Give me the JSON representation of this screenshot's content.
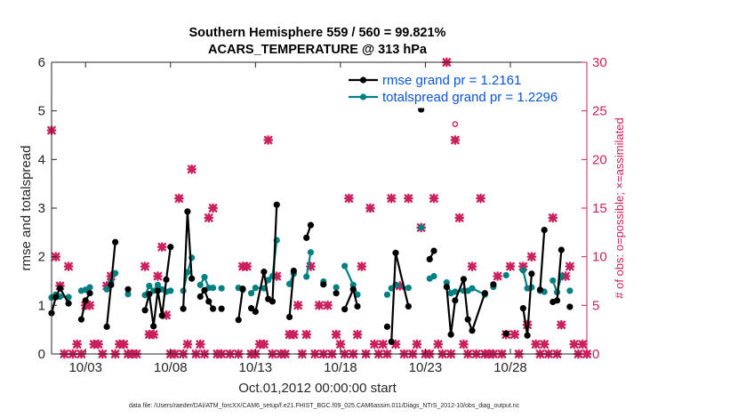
{
  "chart_data": {
    "type": "line",
    "title": [
      "Southern Hemisphere 559 / 560 = 99.821%",
      "ACARS_TEMPERATURE @ 313 hPa"
    ],
    "xlabel": "Oct.01,2012 00:00:00 start",
    "ylabel": "rmse and totalspread",
    "ylabel_right": "# of obs: o=possible; ×=assimilated",
    "x_ticks": [
      3,
      8,
      13,
      18,
      23,
      28
    ],
    "x_tick_labels": [
      "10/03",
      "10/08",
      "10/13",
      "10/18",
      "10/23",
      "10/28"
    ],
    "xlim": [
      1,
      32.5
    ],
    "ylim": [
      0,
      6
    ],
    "y_ticks": [
      0,
      1,
      2,
      3,
      4,
      5,
      6
    ],
    "ylim_right": [
      0,
      30
    ],
    "y_ticks_right": [
      0,
      5,
      10,
      15,
      20,
      25,
      30
    ],
    "grid": false,
    "legend_position": "top-right",
    "series": [
      {
        "name": "rmse grand pr = 1.2161",
        "color": "#000000",
        "points": [
          [
            1.0,
            0.84
          ],
          [
            1.25,
            1.17
          ],
          [
            1.5,
            1.35
          ],
          [
            2.0,
            1.04
          ],
          [
            2.75,
            0.71
          ],
          [
            3.0,
            1.1
          ],
          [
            3.25,
            1.25
          ],
          [
            4.25,
            0.56
          ],
          [
            4.5,
            1.42
          ],
          [
            4.75,
            2.3
          ],
          [
            5.5,
            1.33
          ],
          [
            6.5,
            0.9
          ],
          [
            6.75,
            1.23
          ],
          [
            7.0,
            0.57
          ],
          [
            7.25,
            1.3
          ],
          [
            7.5,
            0.79
          ],
          [
            7.75,
            1.53
          ],
          [
            8.0,
            2.2
          ],
          [
            8.75,
            0.93
          ],
          [
            9.0,
            2.93
          ],
          [
            9.25,
            1.55
          ],
          [
            9.75,
            1.18
          ],
          [
            10.0,
            1.31
          ],
          [
            10.25,
            1.08
          ],
          [
            10.5,
            0.93
          ],
          [
            11.0,
            0.93
          ],
          [
            12.0,
            0.7
          ],
          [
            12.25,
            1.34
          ],
          [
            12.75,
            0.94
          ],
          [
            13.0,
            0.87
          ],
          [
            13.5,
            1.69
          ],
          [
            13.75,
            1.13
          ],
          [
            14.0,
            1.08
          ],
          [
            14.25,
            3.07
          ],
          [
            15.0,
            0.76
          ],
          [
            15.25,
            1.71
          ],
          [
            16.0,
            2.39
          ],
          [
            16.25,
            2.65
          ],
          [
            17.0,
            1.43
          ],
          [
            17.75,
            1.25
          ],
          [
            18.25,
            0.92
          ],
          [
            18.75,
            1.33
          ],
          [
            19.0,
            0.98
          ],
          [
            20.75,
            0.56
          ],
          [
            21.0,
            0.25
          ],
          [
            21.25,
            2.08
          ],
          [
            22.0,
            0.98
          ],
          [
            22.75,
            5.03
          ],
          [
            23.25,
            1.95
          ],
          [
            23.5,
            2.12
          ],
          [
            24.25,
            1.38
          ],
          [
            24.5,
            0.4
          ],
          [
            24.75,
            1.1
          ],
          [
            25.25,
            1.54
          ],
          [
            25.5,
            0.71
          ],
          [
            25.75,
            0.48
          ],
          [
            26.5,
            1.25
          ],
          [
            27.0,
            1.43
          ],
          [
            27.75,
            0.42
          ],
          [
            28.75,
            0.94
          ],
          [
            29.0,
            0.38
          ],
          [
            29.25,
            1.65
          ],
          [
            29.75,
            1.32
          ],
          [
            30.0,
            2.55
          ],
          [
            30.5,
            1.07
          ],
          [
            30.75,
            1.1
          ],
          [
            31.0,
            2.14
          ],
          [
            31.5,
            0.97
          ]
        ],
        "breaks_after": [
          2.0,
          3.25,
          4.75,
          5.5,
          8.0,
          9.25,
          10.5,
          11.0,
          12.25,
          14.25,
          15.25,
          16.25,
          17.0,
          17.75,
          19.0,
          20.75,
          22.0,
          22.75,
          23.5,
          26.5,
          27.0,
          27.75,
          29.25,
          30.0,
          31.0
        ]
      },
      {
        "name": "totalspread grand pr = 1.2296",
        "color": "#008080",
        "points": [
          [
            1.0,
            1.16
          ],
          [
            1.25,
            1.22
          ],
          [
            1.5,
            1.18
          ],
          [
            2.0,
            1.17
          ],
          [
            2.75,
            1.3
          ],
          [
            3.0,
            1.32
          ],
          [
            3.25,
            1.37
          ],
          [
            4.25,
            1.33
          ],
          [
            4.5,
            1.48
          ],
          [
            4.75,
            1.66
          ],
          [
            5.5,
            1.23
          ],
          [
            6.5,
            1.21
          ],
          [
            6.75,
            1.4
          ],
          [
            7.0,
            1.3
          ],
          [
            7.25,
            1.42
          ],
          [
            7.5,
            1.33
          ],
          [
            7.75,
            1.28
          ],
          [
            8.0,
            1.3
          ],
          [
            8.75,
            1.3
          ],
          [
            9.0,
            1.68
          ],
          [
            9.25,
            1.98
          ],
          [
            9.75,
            1.42
          ],
          [
            10.0,
            1.58
          ],
          [
            10.25,
            1.36
          ],
          [
            10.5,
            1.36
          ],
          [
            11.0,
            1.35
          ],
          [
            12.0,
            1.36
          ],
          [
            12.25,
            1.32
          ],
          [
            12.75,
            1.25
          ],
          [
            13.0,
            1.36
          ],
          [
            13.5,
            1.35
          ],
          [
            13.75,
            1.52
          ],
          [
            14.0,
            1.6
          ],
          [
            14.25,
            2.34
          ],
          [
            15.0,
            1.44
          ],
          [
            15.25,
            1.65
          ],
          [
            16.0,
            1.59
          ],
          [
            16.25,
            2.09
          ],
          [
            17.0,
            1.49
          ],
          [
            17.75,
            1.37
          ],
          [
            18.25,
            1.81
          ],
          [
            18.75,
            1.42
          ],
          [
            19.0,
            1.22
          ],
          [
            20.75,
            1.22
          ],
          [
            21.0,
            1.35
          ],
          [
            21.25,
            1.42
          ],
          [
            22.0,
            1.36
          ],
          [
            22.75,
            2.6
          ],
          [
            23.25,
            1.55
          ],
          [
            23.5,
            1.6
          ],
          [
            24.25,
            1.47
          ],
          [
            24.5,
            1.25
          ],
          [
            24.75,
            1.28
          ],
          [
            25.25,
            1.3
          ],
          [
            25.5,
            1.3
          ],
          [
            25.75,
            1.35
          ],
          [
            26.5,
            1.22
          ],
          [
            27.0,
            1.38
          ],
          [
            27.75,
            1.62
          ],
          [
            28.75,
            1.72
          ],
          [
            29.0,
            1.35
          ],
          [
            29.25,
            1.37
          ],
          [
            29.75,
            1.3
          ],
          [
            30.0,
            1.28
          ],
          [
            30.5,
            1.51
          ],
          [
            30.75,
            1.27
          ],
          [
            31.0,
            1.6
          ],
          [
            31.5,
            1.3
          ]
        ],
        "breaks_after": [
          2.0,
          3.25,
          4.75,
          5.5,
          8.0,
          9.25,
          10.5,
          11.0,
          12.25,
          14.25,
          15.25,
          16.25,
          17.0,
          17.75,
          19.0,
          20.75,
          22.0,
          22.75,
          23.5,
          26.5,
          27.0,
          27.75,
          29.25,
          30.0,
          31.0
        ]
      }
    ],
    "obs_possible": {
      "color": "#cc1f5e",
      "marker": "circle",
      "points": [
        [
          24.75,
          23
        ]
      ]
    },
    "obs_assimilated": {
      "color": "#cc1f5e",
      "marker": "x",
      "points": [
        [
          1.0,
          23
        ],
        [
          1.25,
          10
        ],
        [
          1.5,
          7
        ],
        [
          1.75,
          0
        ],
        [
          2.0,
          9
        ],
        [
          2.25,
          0
        ],
        [
          2.5,
          1
        ],
        [
          2.75,
          0
        ],
        [
          3.0,
          5
        ],
        [
          3.25,
          5
        ],
        [
          3.5,
          1
        ],
        [
          3.75,
          1
        ],
        [
          4.0,
          0
        ],
        [
          4.25,
          7
        ],
        [
          4.5,
          8
        ],
        [
          4.75,
          0
        ],
        [
          5.0,
          1
        ],
        [
          5.25,
          1
        ],
        [
          5.5,
          0
        ],
        [
          5.75,
          0
        ],
        [
          6.0,
          0
        ],
        [
          6.5,
          9
        ],
        [
          6.75,
          2
        ],
        [
          7.0,
          2
        ],
        [
          7.25,
          8
        ],
        [
          7.5,
          11
        ],
        [
          7.75,
          4
        ],
        [
          8.0,
          0
        ],
        [
          8.25,
          0
        ],
        [
          8.5,
          16
        ],
        [
          8.75,
          0
        ],
        [
          9.0,
          1
        ],
        [
          9.25,
          19
        ],
        [
          9.5,
          0
        ],
        [
          9.75,
          1
        ],
        [
          10.0,
          0
        ],
        [
          10.25,
          14
        ],
        [
          10.5,
          15
        ],
        [
          10.75,
          0
        ],
        [
          11.0,
          0
        ],
        [
          11.5,
          0
        ],
        [
          12.0,
          0
        ],
        [
          12.25,
          9
        ],
        [
          12.5,
          9
        ],
        [
          12.75,
          0
        ],
        [
          13.0,
          0
        ],
        [
          13.25,
          1
        ],
        [
          13.5,
          1
        ],
        [
          13.75,
          22
        ],
        [
          14.0,
          0
        ],
        [
          14.25,
          8
        ],
        [
          14.5,
          0
        ],
        [
          14.75,
          0
        ],
        [
          15.0,
          2
        ],
        [
          15.25,
          2
        ],
        [
          15.5,
          5
        ],
        [
          15.75,
          0
        ],
        [
          16.0,
          2
        ],
        [
          16.25,
          9
        ],
        [
          16.5,
          0
        ],
        [
          16.75,
          5
        ],
        [
          17.0,
          0
        ],
        [
          17.25,
          5
        ],
        [
          17.5,
          0
        ],
        [
          17.75,
          2
        ],
        [
          18.0,
          1
        ],
        [
          18.25,
          0
        ],
        [
          18.5,
          16
        ],
        [
          18.75,
          0
        ],
        [
          19.0,
          2
        ],
        [
          19.25,
          9
        ],
        [
          19.5,
          0
        ],
        [
          19.75,
          15
        ],
        [
          20.0,
          1
        ],
        [
          20.25,
          0
        ],
        [
          20.5,
          1
        ],
        [
          20.75,
          0
        ],
        [
          21.0,
          16
        ],
        [
          21.25,
          1
        ],
        [
          21.5,
          7
        ],
        [
          21.75,
          0
        ],
        [
          22.0,
          16
        ],
        [
          22.25,
          0
        ],
        [
          22.5,
          1
        ],
        [
          22.75,
          13
        ],
        [
          23.0,
          0
        ],
        [
          23.25,
          0
        ],
        [
          23.5,
          16
        ],
        [
          23.75,
          1
        ],
        [
          24.0,
          0
        ],
        [
          24.25,
          30
        ],
        [
          24.5,
          0
        ],
        [
          24.75,
          22
        ],
        [
          25.0,
          14
        ],
        [
          25.25,
          1
        ],
        [
          25.5,
          0
        ],
        [
          25.75,
          9
        ],
        [
          26.0,
          0
        ],
        [
          26.25,
          16
        ],
        [
          26.5,
          0
        ],
        [
          26.75,
          0
        ],
        [
          27.0,
          0
        ],
        [
          27.25,
          8
        ],
        [
          27.5,
          0
        ],
        [
          27.75,
          2
        ],
        [
          28.0,
          9
        ],
        [
          28.25,
          2
        ],
        [
          28.5,
          0
        ],
        [
          28.75,
          9
        ],
        [
          29.0,
          3
        ],
        [
          29.25,
          10
        ],
        [
          29.5,
          1
        ],
        [
          29.75,
          0
        ],
        [
          30.0,
          1
        ],
        [
          30.25,
          0
        ],
        [
          30.5,
          14
        ],
        [
          30.75,
          0
        ],
        [
          31.0,
          3
        ],
        [
          31.25,
          8
        ],
        [
          31.5,
          9
        ],
        [
          31.75,
          1
        ],
        [
          32.0,
          0
        ],
        [
          32.25,
          1
        ],
        [
          32.5,
          0
        ]
      ]
    }
  },
  "footer": "data file: /Users/raeder/DAI/ATM_forcXX/CAM6_setup/f.e21.FHIST_BGC.f09_025.CAM6assim.011/Diags_NTrS_2012-10/obs_diag_output.nc"
}
